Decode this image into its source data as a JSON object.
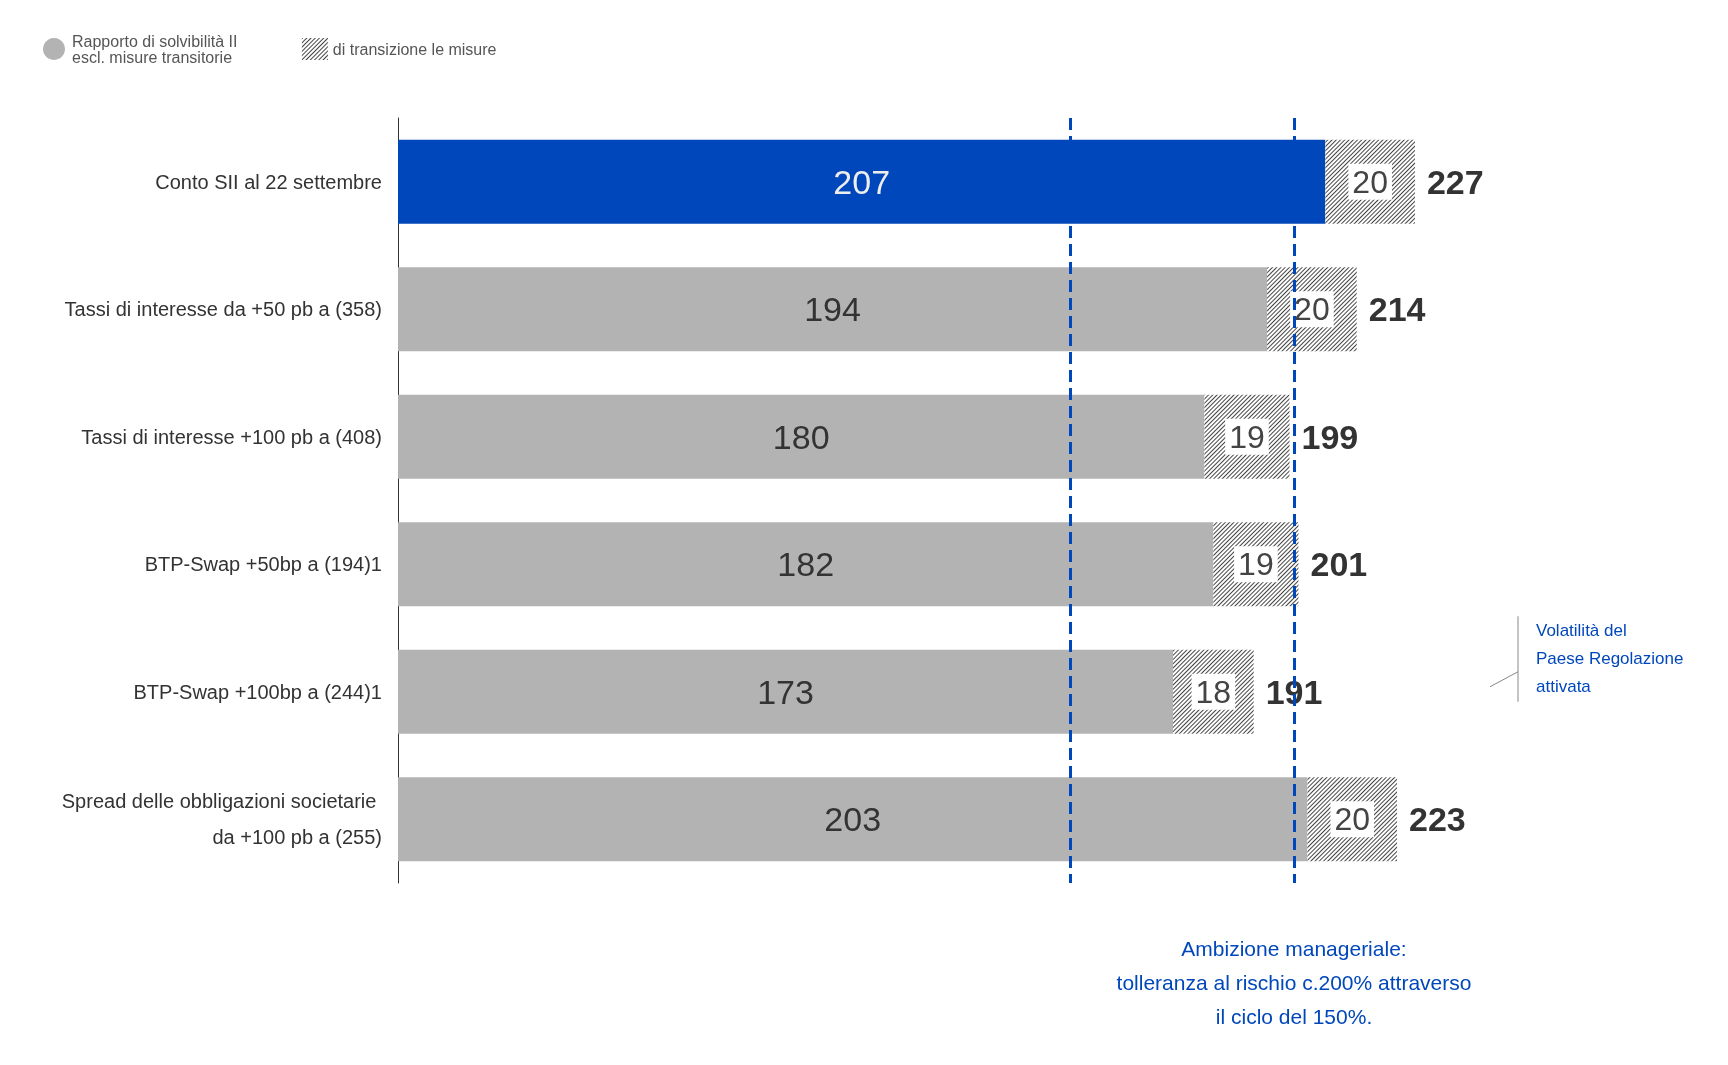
{
  "chart_data": {
    "type": "bar",
    "orientation": "horizontal",
    "stacked": true,
    "data_labels": true,
    "tick_labels": "y",
    "legend": "top left",
    "categories": [
      "Conto SII al 22 settembre",
      "Tassi di interesse da +50 pb a (358)",
      "Tassi di interesse +100 pb a (408)",
      "BTP-Swap +50bp a (194)1",
      "BTP-Swap +100bp a (244)1",
      "Spread delle obbligazioni societarie da +100 pb a (255)"
    ],
    "series": [
      {
        "name": "Rapporto di solvibilità II escl. misure transitorie",
        "color": "#b3b3b3",
        "colors": [
          "#0047bb",
          "#b3b3b3",
          "#b3b3b3",
          "#b3b3b3",
          "#b3b3b3",
          "#b3b3b3"
        ],
        "values": [
          207,
          194,
          180,
          182,
          173,
          203
        ]
      },
      {
        "name": "di transizione le misure",
        "color": "#ffffff",
        "values": [
          20,
          20,
          19,
          19,
          18,
          20
        ]
      }
    ],
    "totals": [
      "227",
      "214",
      "199",
      "201",
      "191",
      "223"
    ],
    "ref_lines": [
      {
        "axis": "x",
        "value": 150,
        "color": "#0047bb",
        "line_style": "dashed"
      },
      {
        "axis": "x",
        "value": 200,
        "color": "#0047bb",
        "line_style": "dashed"
      }
    ],
    "annotations": [
      "Volatilità del Paese Regolazione attivata",
      "Ambizione manageriale:",
      "tolleranza al rischio c.200% attraverso",
      "il ciclo del 150%."
    ]
  }
}
